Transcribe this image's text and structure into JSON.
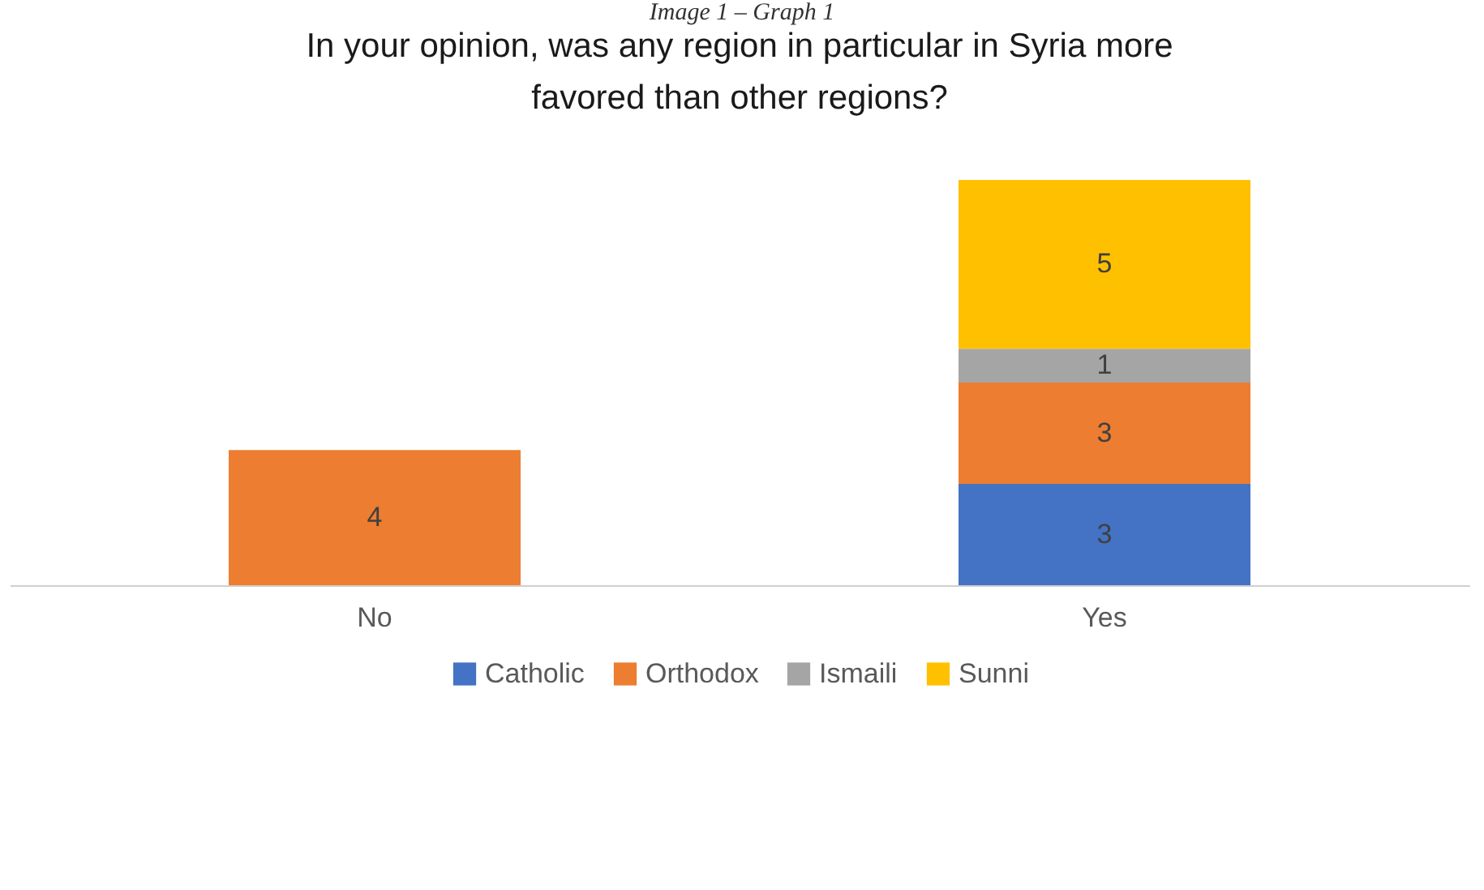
{
  "chart_data": {
    "type": "bar",
    "title": "In your opinion, was any region in particular in Syria more favored than other regions?",
    "annotations": [
      "Image 1 – Graph 1"
    ],
    "categories": [
      "No",
      "Yes"
    ],
    "stacked": true,
    "data_labels": true,
    "legend": "bottom",
    "series": [
      {
        "name": "Catholic",
        "color": "#4472c4",
        "values": [
          null,
          3
        ]
      },
      {
        "name": "Orthodox",
        "color": "#ed7d31",
        "values": [
          4,
          3
        ]
      },
      {
        "name": "Ismaili",
        "color": "#a5a5a5",
        "values": [
          null,
          1
        ]
      },
      {
        "name": "Sunni",
        "color": "#ffc000",
        "values": [
          null,
          5
        ]
      }
    ]
  }
}
